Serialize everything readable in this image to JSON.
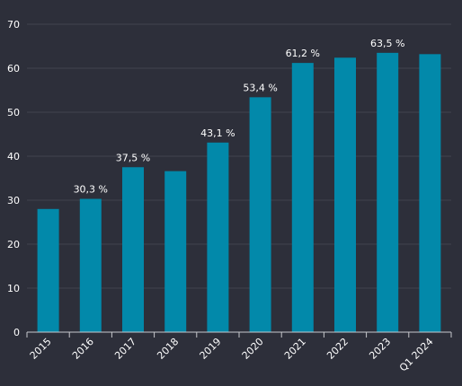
{
  "chart_data": {
    "type": "bar",
    "categories": [
      "2015",
      "2016",
      "2017",
      "2018",
      "2019",
      "2020",
      "2021",
      "2022",
      "2023",
      "Q1 2024"
    ],
    "values": [
      28.0,
      30.3,
      37.5,
      36.6,
      43.1,
      53.4,
      61.2,
      62.4,
      63.5,
      63.2
    ],
    "data_labels": [
      "",
      "30,3 %",
      "37,5 %",
      "",
      "43,1 %",
      "53,4 %",
      "61,2 %",
      "",
      "63,5 %",
      ""
    ],
    "y_ticks": [
      "0",
      "10",
      "20",
      "30",
      "40",
      "50",
      "60",
      "70"
    ],
    "ylim": [
      0,
      70
    ],
    "title": "",
    "xlabel": "",
    "ylabel": "",
    "grid": true,
    "legend": "none"
  },
  "colors": {
    "background": "#2d2f3a",
    "bar": "#0289aa",
    "grid": "#41434f",
    "axis": "#c8c9cd",
    "text": "#ffffff"
  }
}
